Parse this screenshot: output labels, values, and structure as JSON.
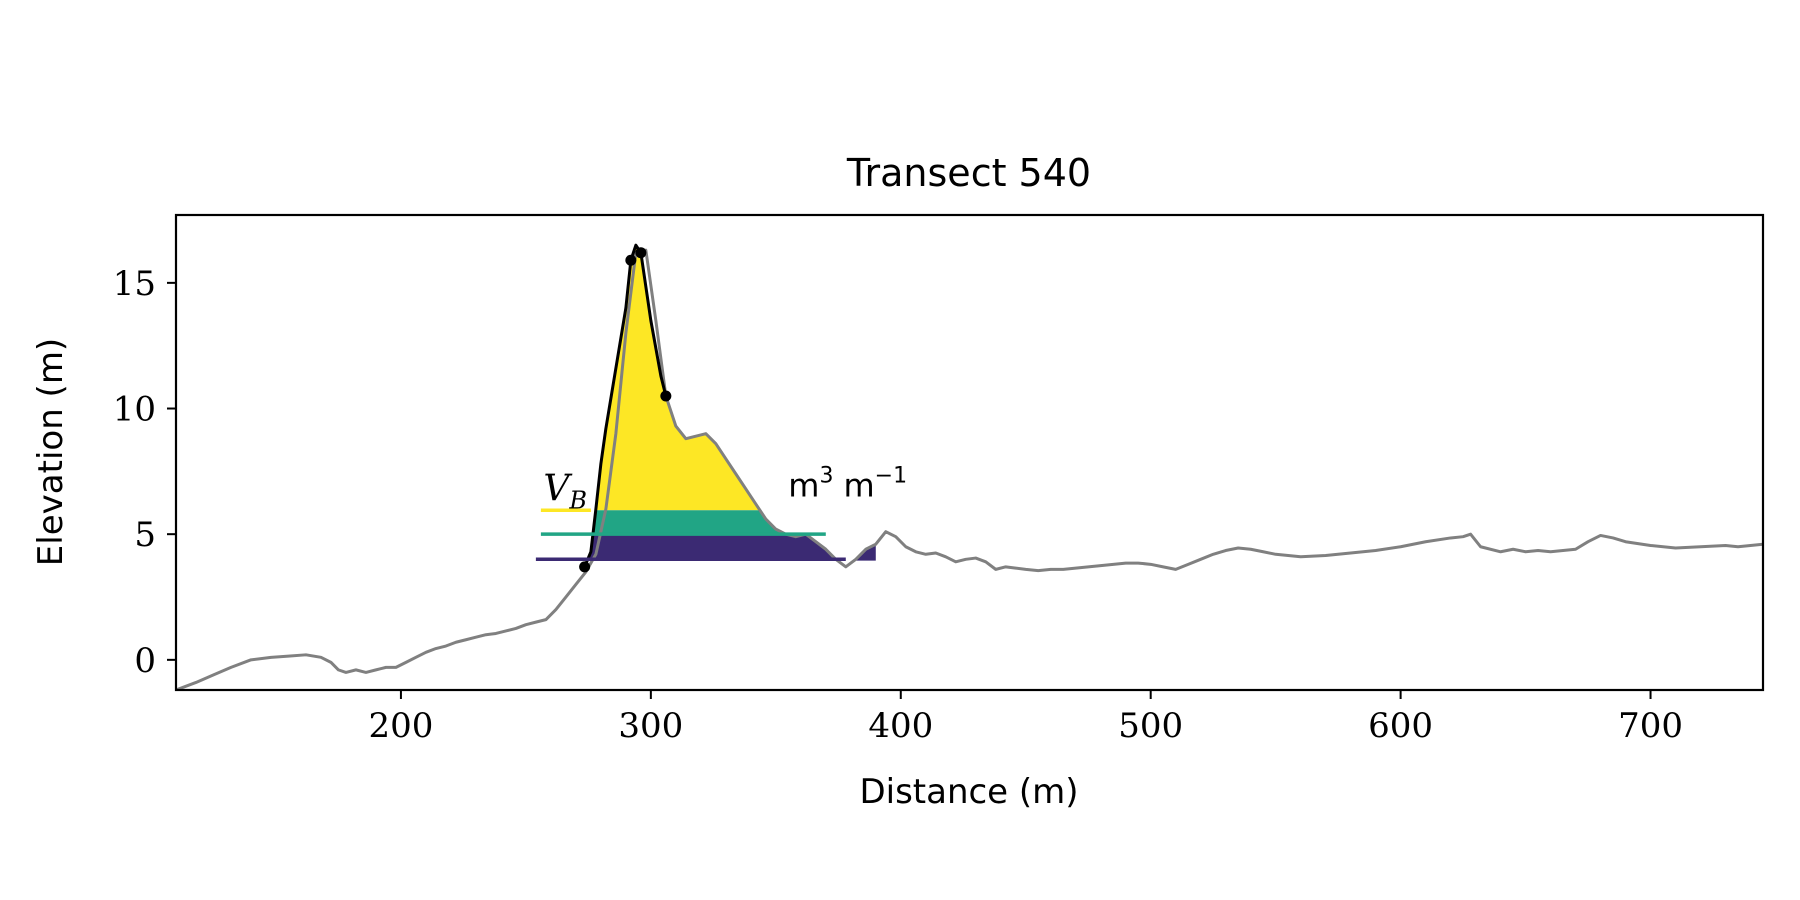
{
  "chart_data": {
    "type": "line",
    "title": "Transect 540",
    "xlabel": "Distance (m)",
    "ylabel": "Elevation (m)",
    "xlim": [
      110,
      745
    ],
    "ylim": [
      -1.2,
      17.7
    ],
    "xticks": [
      200,
      300,
      400,
      500,
      600,
      700
    ],
    "yticks": [
      0,
      5,
      10,
      15
    ],
    "grid": false,
    "legend": "none",
    "series": [
      {
        "role": "profile",
        "color": "#808080",
        "x": [
          110,
          118,
          125,
          132,
          140,
          148,
          155,
          162,
          168,
          172,
          175,
          178,
          182,
          186,
          190,
          194,
          198,
          202,
          206,
          210,
          214,
          218,
          222,
          226,
          230,
          234,
          238,
          242,
          246,
          250,
          254,
          258,
          262,
          266,
          270,
          274,
          278,
          282,
          286,
          290,
          294,
          298,
          302,
          306,
          310,
          314,
          318,
          322,
          326,
          330,
          334,
          338,
          342,
          346,
          350,
          354,
          358,
          362,
          366,
          370,
          374,
          378,
          382,
          386,
          390,
          394,
          398,
          402,
          406,
          410,
          414,
          418,
          422,
          426,
          430,
          434,
          438,
          442,
          446,
          450,
          455,
          460,
          465,
          470,
          475,
          480,
          485,
          490,
          495,
          500,
          505,
          510,
          515,
          520,
          525,
          530,
          535,
          540,
          545,
          550,
          555,
          560,
          570,
          580,
          590,
          600,
          610,
          620,
          625,
          628,
          632,
          640,
          645,
          650,
          655,
          660,
          665,
          670,
          675,
          680,
          685,
          690,
          700,
          710,
          720,
          730,
          735,
          740,
          745
        ],
        "y": [
          -1.2,
          -0.9,
          -0.6,
          -0.3,
          0.0,
          0.1,
          0.15,
          0.2,
          0.1,
          -0.1,
          -0.4,
          -0.5,
          -0.4,
          -0.5,
          -0.4,
          -0.3,
          -0.3,
          -0.1,
          0.1,
          0.3,
          0.45,
          0.55,
          0.7,
          0.8,
          0.9,
          1.0,
          1.05,
          1.15,
          1.25,
          1.4,
          1.5,
          1.6,
          2.0,
          2.5,
          3.0,
          3.5,
          4.2,
          6.0,
          9.0,
          13.0,
          16.2,
          16.3,
          13.5,
          10.5,
          9.3,
          8.8,
          8.9,
          9.0,
          8.6,
          8.0,
          7.4,
          6.8,
          6.2,
          5.6,
          5.2,
          5.0,
          4.9,
          5.0,
          4.7,
          4.4,
          4.0,
          3.7,
          4.0,
          4.4,
          4.6,
          5.1,
          4.9,
          4.5,
          4.3,
          4.2,
          4.25,
          4.1,
          3.9,
          4.0,
          4.05,
          3.9,
          3.6,
          3.7,
          3.65,
          3.6,
          3.55,
          3.6,
          3.6,
          3.65,
          3.7,
          3.75,
          3.8,
          3.85,
          3.85,
          3.8,
          3.7,
          3.6,
          3.8,
          4.0,
          4.2,
          4.35,
          4.45,
          4.4,
          4.3,
          4.2,
          4.15,
          4.1,
          4.15,
          4.25,
          4.35,
          4.5,
          4.7,
          4.85,
          4.9,
          5.0,
          4.5,
          4.3,
          4.4,
          4.3,
          4.35,
          4.3,
          4.35,
          4.4,
          4.7,
          4.95,
          4.85,
          4.7,
          4.55,
          4.45,
          4.5,
          4.55,
          4.5,
          4.55,
          4.6
        ]
      },
      {
        "role": "dune-outline",
        "color": "#000000",
        "x": [
          273.5,
          276,
          278,
          280,
          282,
          285,
          290,
          292,
          294,
          296,
          300,
          304,
          306
        ],
        "y": [
          3.7,
          4.3,
          6.0,
          7.8,
          9.2,
          11.0,
          14.0,
          15.9,
          16.5,
          16.2,
          13.5,
          11.3,
          10.5
        ]
      }
    ],
    "markers": {
      "color": "#000000",
      "x": [
        273.5,
        292,
        296,
        306
      ],
      "y": [
        3.7,
        15.9,
        16.2,
        10.5
      ]
    },
    "volume_bands": [
      {
        "level": "upper",
        "color": "#fde725",
        "from": 5.95,
        "to": 17.0,
        "label_line_x": [
          256,
          276
        ]
      },
      {
        "level": "middle",
        "color": "#21a585",
        "from": 5.0,
        "to": 5.95,
        "label_line_x": [
          256,
          370
        ]
      },
      {
        "level": "lower",
        "color": "#3b2a73",
        "from": 3.95,
        "to": 5.0,
        "label_line_x": [
          254,
          378
        ]
      }
    ],
    "annotations": [
      {
        "id": "vb",
        "text_main": "V",
        "text_sub": "B",
        "x": 257,
        "y": 6.35
      },
      {
        "id": "units",
        "text_main": "m",
        "sup1": "3",
        "text_mid": "m",
        "sup2": "−1",
        "x": 355,
        "y": 6.5
      }
    ]
  }
}
